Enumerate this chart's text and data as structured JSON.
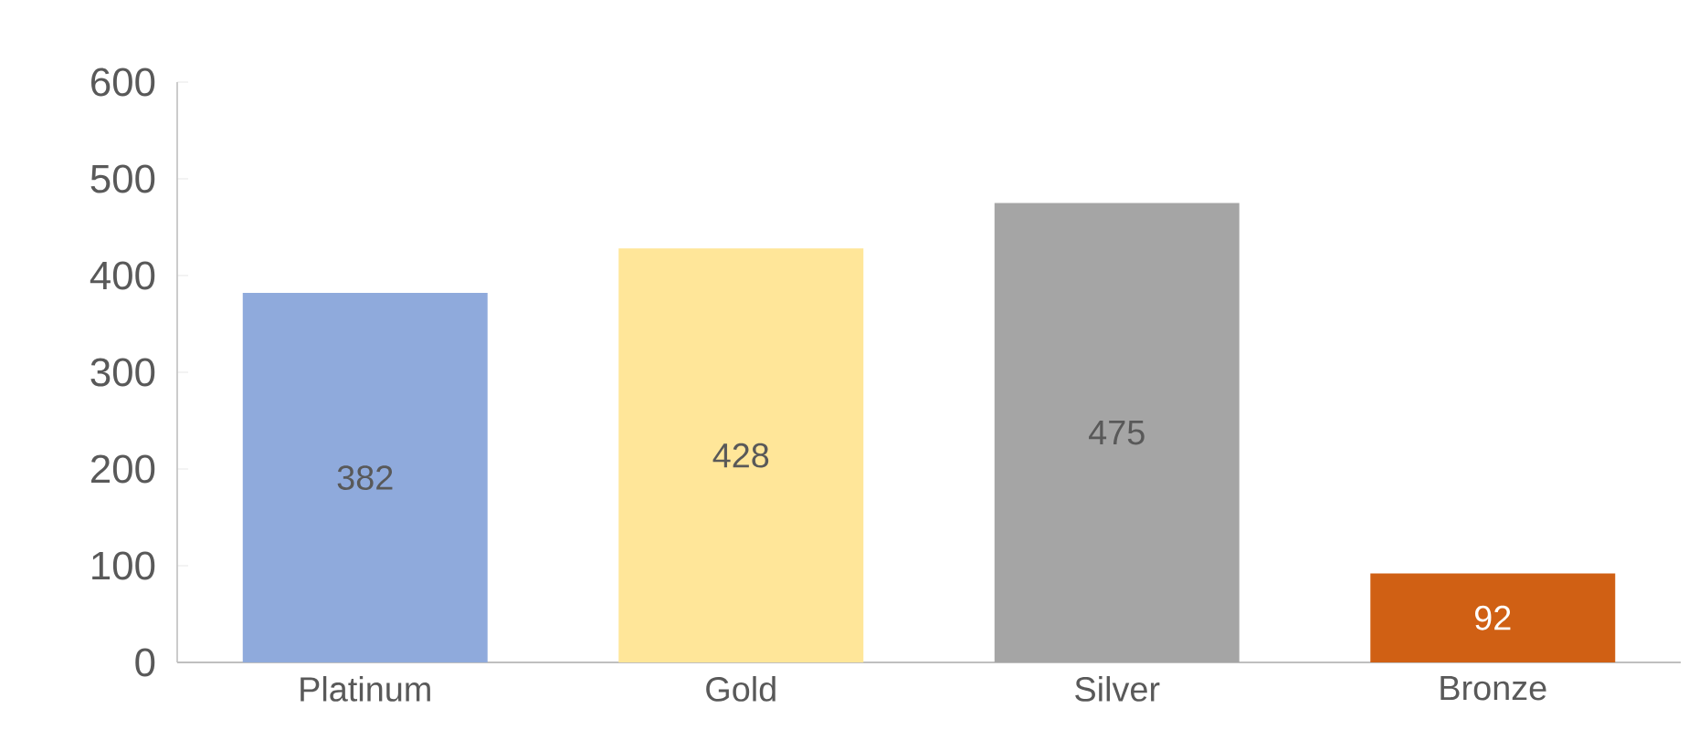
{
  "chart_data": {
    "type": "bar",
    "categories": [
      "Platinum",
      "Gold",
      "Silver",
      "Bronze"
    ],
    "values": [
      382,
      428,
      475,
      92
    ],
    "colors": [
      "#8faadc",
      "#ffe699",
      "#a5a5a5",
      "#d06014"
    ],
    "ylim": [
      0,
      600
    ],
    "yticks": [
      0,
      100,
      200,
      300,
      400,
      500,
      600
    ],
    "data_labels": true,
    "grid": false
  }
}
